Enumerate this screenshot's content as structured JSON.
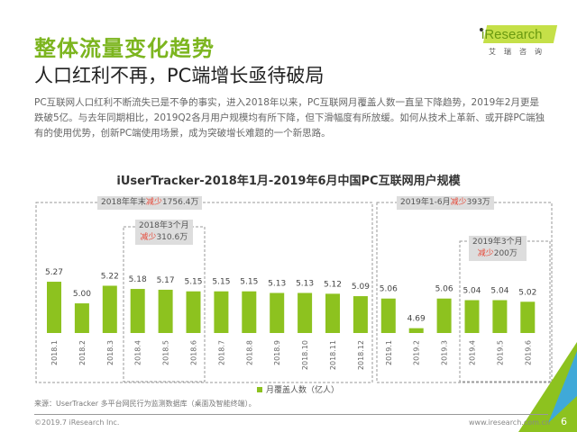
{
  "header": {
    "title": "整体流量变化趋势",
    "subtitle": "人口红利不再，PC端增长亟待破局",
    "body": "PC互联网人口红利不断流失已是不争的事实，进入2018年以来，PC互联网月覆盖人数一直呈下降趋势，2019年2月更是跌破5亿。与去年同期相比，2019Q2各月用户规模均有所下降，但下滑幅度有所放缓。如何从技术上革新、或开辟PC端独有的使用优势，创新PC端使用场景，成为突破增长难题的一个新思路。"
  },
  "logo": {
    "text": "iResearch",
    "sub": "艾瑞咨询"
  },
  "annotations": [
    {
      "pre": "2018年年末",
      "red": "减少",
      "post": "1756.4万"
    },
    {
      "pre": "2018年3个月",
      "red": "减少",
      "post": "310.6万"
    },
    {
      "pre": "2019年1-6月",
      "red": "减少",
      "post": "393万"
    },
    {
      "pre": "2019年3个月",
      "red": "减少",
      "post": "200万"
    }
  ],
  "chart_data": {
    "type": "bar",
    "title": "iUserTracker-2018年1月-2019年6月中国PC互联网用户规模",
    "categories": [
      "2018.1",
      "2018.2",
      "2018.3",
      "2018.4",
      "2018.5",
      "2018.6",
      "2018.7",
      "2018.8",
      "2018.9",
      "2018.10",
      "2018.11",
      "2018.12",
      "2019.1",
      "2019.2",
      "2019.3",
      "2019.4",
      "2019.5",
      "2019.6"
    ],
    "series": [
      {
        "name": "月覆盖人数（亿人）",
        "values": [
          5.27,
          5.0,
          5.22,
          5.18,
          5.17,
          5.15,
          5.15,
          5.15,
          5.13,
          5.13,
          5.12,
          5.09,
          5.06,
          4.69,
          5.06,
          5.04,
          5.04,
          5.02
        ]
      }
    ],
    "bar_color": "#8dc21f",
    "legend": "bottom",
    "grid": false
  },
  "footer": {
    "source": "来源：UserTracker 多平台网民行为监测数据库（桌面及智能终端）。",
    "copyright": "©2019.7 iResearch Inc.",
    "url": "www.iresearch.com.cn",
    "page": "6"
  }
}
